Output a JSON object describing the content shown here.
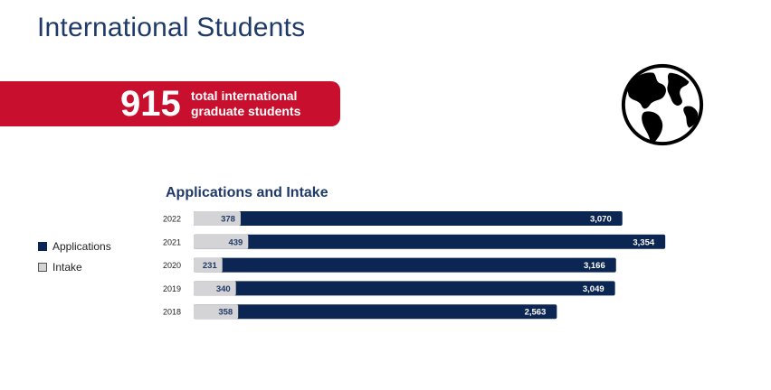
{
  "page": {
    "title": "International Students"
  },
  "banner": {
    "number": "915",
    "text_line1": "total international",
    "text_line2": "graduate students"
  },
  "globe": {
    "icon": "globe-icon"
  },
  "colors": {
    "banner": "#c8102e",
    "applications": "#0b2652",
    "intake": "#d4d4d6",
    "title": "#1f3a68"
  },
  "legend": [
    {
      "label": "Applications",
      "color": "#0b2652"
    },
    {
      "label": "Intake",
      "color": "#d4d4d6"
    }
  ],
  "chart_data": {
    "type": "bar",
    "orientation": "horizontal",
    "stacked": true,
    "title": "Applications and Intake",
    "categories": [
      "2022",
      "2021",
      "2020",
      "2019",
      "2018"
    ],
    "series": [
      {
        "name": "Intake",
        "values": [
          378,
          439,
          231,
          340,
          358
        ],
        "labels": [
          "378",
          "439",
          "231",
          "340",
          "358"
        ]
      },
      {
        "name": "Applications",
        "values": [
          3070,
          3354,
          3166,
          3049,
          2563
        ],
        "labels": [
          "3,070",
          "3,354",
          "3,166",
          "3,049",
          "2,563"
        ]
      }
    ],
    "legend_position": "left",
    "grid": false
  }
}
